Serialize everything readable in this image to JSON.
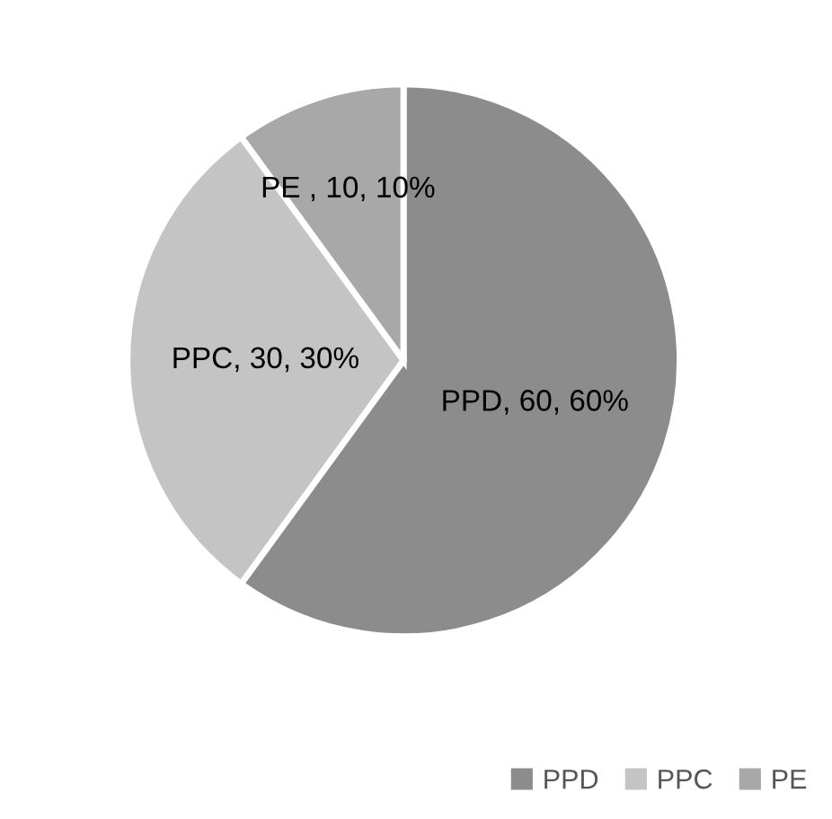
{
  "chart_data": {
    "type": "pie",
    "categories": [
      "PPD",
      "PPC",
      "PE"
    ],
    "values": [
      60,
      30,
      10
    ],
    "colors": [
      "#8c8c8c",
      "#c4c4c4",
      "#a8a8a8"
    ],
    "value_labels": [
      "PPD, 60, 60%",
      "PPC, 30, 30%",
      "PE , 10, 10%"
    ],
    "legend": "bottom right"
  }
}
